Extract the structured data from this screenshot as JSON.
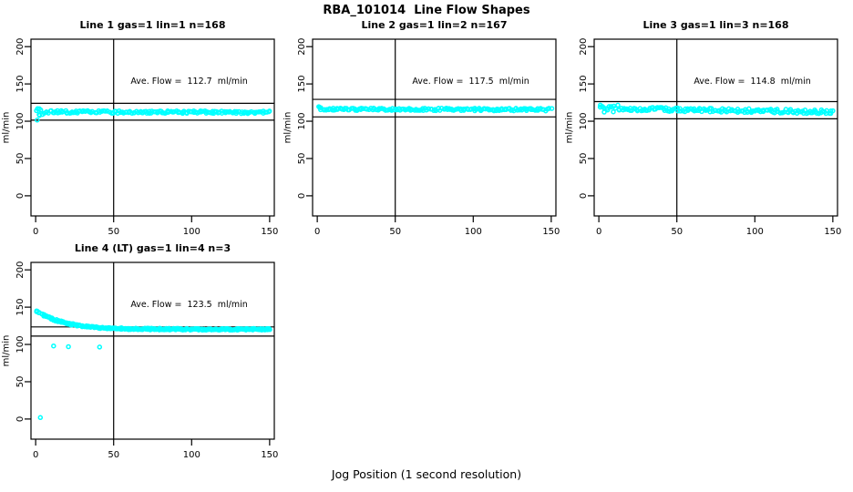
{
  "title": "RBA_101014  Line Flow Shapes",
  "x_axis_label": "Jog Position (1 second resolution)",
  "y_axis_label": "ml/min",
  "colors": {
    "points": "#00FFFF",
    "lines": "#000000",
    "background": "#FFFFFF"
  },
  "chart_data": [
    {
      "type": "scatter",
      "title": "Line 1 gas=1 lin=1 n=168",
      "annotation": "Ave. Flow =  112.7  ml/min",
      "ave_flow_ml_min": 112.7,
      "n_points": 168,
      "xlabel": "",
      "ylabel": "ml/min",
      "xlim": [
        -3,
        153
      ],
      "ylim": [
        -27,
        210
      ],
      "x_ticks": [
        0,
        50,
        100,
        150
      ],
      "y_ticks": [
        0,
        50,
        100,
        150,
        200
      ],
      "vline_x": 50,
      "hlines": [
        124.0,
        101.4
      ],
      "series": {
        "band": {
          "x_start": 1,
          "x_end": 150,
          "y_start": 112.4,
          "y_end": 112.0,
          "spread": 1.8,
          "start_spread": 4.5,
          "start_x_until": 6
        },
        "outliers": [
          [
            1,
            101.5
          ],
          [
            1.2,
            116.8
          ],
          [
            2.5,
            107.8
          ]
        ]
      }
    },
    {
      "type": "scatter",
      "title": "Line 2 gas=1 lin=2 n=167",
      "annotation": "Ave. Flow =  117.5  ml/min",
      "ave_flow_ml_min": 117.5,
      "n_points": 167,
      "xlabel": "",
      "ylabel": "ml/min",
      "xlim": [
        -3,
        153
      ],
      "ylim": [
        -27,
        210
      ],
      "x_ticks": [
        0,
        50,
        100,
        150
      ],
      "y_ticks": [
        0,
        50,
        100,
        150,
        200
      ],
      "vline_x": 50,
      "hlines": [
        129.3,
        105.8
      ],
      "series": {
        "band": {
          "x_start": 1,
          "x_end": 150,
          "y_start": 116.2,
          "y_end": 115.5,
          "spread": 1.7,
          "start_spread": 3.2,
          "start_x_until": 4
        },
        "outliers": [
          [
            1,
            119.5
          ]
        ]
      }
    },
    {
      "type": "scatter",
      "title": "Line 3 gas=1 lin=3 n=168",
      "annotation": "Ave. Flow =  114.8  ml/min",
      "ave_flow_ml_min": 114.8,
      "n_points": 168,
      "xlabel": "",
      "ylabel": "ml/min",
      "xlim": [
        -3,
        153
      ],
      "ylim": [
        -27,
        210
      ],
      "x_ticks": [
        0,
        50,
        100,
        150
      ],
      "y_ticks": [
        0,
        50,
        100,
        150,
        200
      ],
      "vline_x": 50,
      "hlines": [
        126.3,
        103.3
      ],
      "series": {
        "band": {
          "x_start": 1,
          "x_end": 150,
          "y_start": 117.0,
          "y_end": 112.5,
          "spread": 2.6,
          "start_spread": 5.0,
          "start_x_until": 13
        },
        "outliers": [
          [
            1,
            121.5
          ],
          [
            2,
            120
          ]
        ]
      }
    },
    {
      "type": "scatter",
      "title": "Line 4 (LT) gas=1 lin=4 n=3",
      "annotation": "Ave. Flow =  123.5  ml/min",
      "ave_flow_ml_min": 123.5,
      "n_points": 3,
      "xlabel": "",
      "ylabel": "ml/min",
      "xlim": [
        -3,
        153
      ],
      "ylim": [
        -27,
        210
      ],
      "x_ticks": [
        0,
        50,
        100,
        150
      ],
      "y_ticks": [
        0,
        50,
        100,
        150,
        200
      ],
      "vline_x": 50,
      "hlines": [
        123.5,
        111.2
      ],
      "series": {
        "curve": {
          "runs": 3,
          "asymptote": 120.3,
          "amplitude": 26,
          "tau": 17,
          "noise": 1.1,
          "x_start": 1,
          "x_end": 150
        },
        "outliers": [
          [
            3,
            2
          ],
          [
            11.5,
            98
          ],
          [
            21,
            97
          ],
          [
            41,
            96.5
          ]
        ]
      }
    }
  ]
}
